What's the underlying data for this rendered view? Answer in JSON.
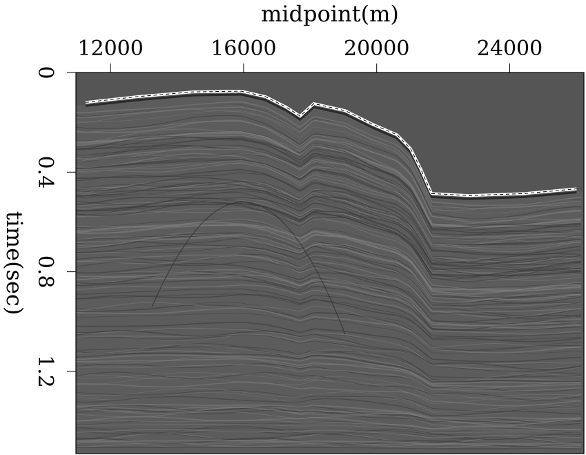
{
  "chart_data": {
    "type": "heatmap",
    "xlabel": "midpoint(m)",
    "ylabel": "time(sec)",
    "xlim": [
      10960,
      26230
    ],
    "ylim": [
      0,
      1.53
    ],
    "y_inverted": true,
    "x_axis_position": "top",
    "x_ticks": [
      12000,
      16000,
      20000,
      24000
    ],
    "x_tick_labels": [
      "12000",
      "16000",
      "20000",
      "24000"
    ],
    "y_ticks": [
      0,
      0.4,
      0.8,
      1.2
    ],
    "y_tick_labels": [
      "0",
      "0.4",
      "0.8",
      "1.2"
    ],
    "colormap": "grayscale",
    "grid": false,
    "seafloor_pick": {
      "style": "white line with black dashes",
      "x": [
        11250,
        12810,
        14470,
        15930,
        16660,
        17280,
        17700,
        18110,
        19050,
        19880,
        20610,
        21020,
        21330,
        21650,
        22790,
        24450,
        26010
      ],
      "t": [
        0.12,
        0.097,
        0.078,
        0.075,
        0.097,
        0.139,
        0.175,
        0.125,
        0.153,
        0.208,
        0.25,
        0.306,
        0.389,
        0.486,
        0.494,
        0.486,
        0.467
      ]
    }
  },
  "colors": {
    "water": "#555555",
    "background": "#5c5c5c",
    "pick": "#ffffff"
  }
}
